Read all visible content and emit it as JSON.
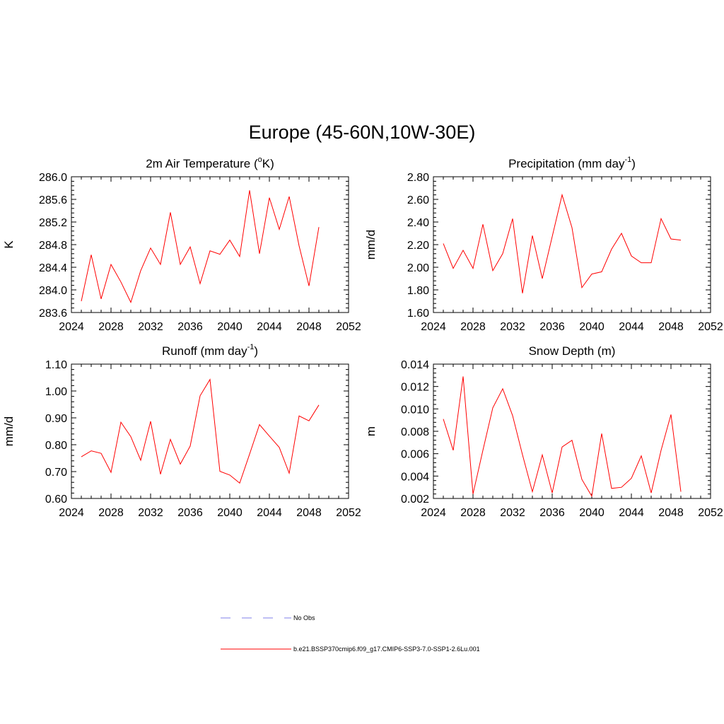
{
  "figure": {
    "title": "Europe (45-60N,10W-30E)"
  },
  "legend": {
    "items": [
      {
        "label": "No Obs",
        "color": "#9999ee",
        "style": "dashed"
      },
      {
        "label": "b.e21.BSSP370cmip6.f09_g17.CMIP6-SSP3-7.0-SSP1-2.6Lu.001",
        "color": "#ff0000",
        "style": "solid"
      }
    ]
  },
  "chart_data": [
    {
      "type": "line",
      "title": "2m Air Temperature (°K)",
      "title_parts": {
        "pre": "2m Air Temperature (",
        "sup": "o",
        "post": "K)"
      },
      "xlabel": "",
      "ylabel": "K",
      "xlim": [
        2024,
        2052
      ],
      "xticks": [
        "2024",
        "2028",
        "2032",
        "2036",
        "2040",
        "2044",
        "2048",
        "2052"
      ],
      "ylim": [
        283.6,
        286.0
      ],
      "yticks": [
        "283.6",
        "284.0",
        "284.4",
        "284.8",
        "285.2",
        "285.6",
        "286.0"
      ],
      "color": "#ff0000",
      "series": [
        {
          "name": "b.e21.BSSP370cmip6.f09_g17.CMIP6-SSP3-7.0-SSP1-2.6Lu.001",
          "x": [
            2025,
            2026,
            2027,
            2028,
            2029,
            2030,
            2031,
            2032,
            2033,
            2034,
            2035,
            2036,
            2037,
            2038,
            2039,
            2040,
            2041,
            2042,
            2043,
            2044,
            2045,
            2046,
            2047,
            2048,
            2049
          ],
          "y": [
            283.8,
            284.62,
            283.84,
            284.45,
            284.14,
            283.78,
            284.34,
            284.74,
            284.45,
            285.37,
            284.45,
            284.76,
            284.11,
            284.69,
            284.63,
            284.88,
            284.59,
            285.76,
            284.64,
            285.63,
            285.07,
            285.65,
            284.78,
            284.07,
            285.11
          ]
        }
      ]
    },
    {
      "type": "line",
      "title": "Precipitation (mm day-1)",
      "title_parts": {
        "pre": "Precipitation (mm day",
        "sup": "-1",
        "post": ")"
      },
      "xlabel": "",
      "ylabel": "mm/d",
      "xlim": [
        2024,
        2052
      ],
      "xticks": [
        "2024",
        "2028",
        "2032",
        "2036",
        "2040",
        "2044",
        "2048",
        "2052"
      ],
      "ylim": [
        1.6,
        2.8
      ],
      "yticks": [
        "1.60",
        "1.80",
        "2.00",
        "2.20",
        "2.40",
        "2.60",
        "2.80"
      ],
      "color": "#ff0000",
      "series": [
        {
          "name": "b.e21.BSSP370cmip6.f09_g17.CMIP6-SSP3-7.0-SSP1-2.6Lu.001",
          "x": [
            2025,
            2026,
            2027,
            2028,
            2029,
            2030,
            2031,
            2032,
            2033,
            2034,
            2035,
            2036,
            2037,
            2038,
            2039,
            2040,
            2041,
            2042,
            2043,
            2044,
            2045,
            2046,
            2047,
            2048,
            2049
          ],
          "y": [
            2.21,
            1.99,
            2.15,
            1.99,
            2.38,
            1.97,
            2.12,
            2.43,
            1.77,
            2.28,
            1.9,
            2.27,
            2.64,
            2.35,
            1.82,
            1.94,
            1.96,
            2.16,
            2.3,
            2.1,
            2.04,
            2.04,
            2.43,
            2.25,
            2.24
          ]
        }
      ]
    },
    {
      "type": "line",
      "title": "Runoff (mm day-1)",
      "title_parts": {
        "pre": "Runoff (mm day",
        "sup": "-1",
        "post": ")"
      },
      "xlabel": "",
      "ylabel": "mm/d",
      "xlim": [
        2024,
        2052
      ],
      "xticks": [
        "2024",
        "2028",
        "2032",
        "2036",
        "2040",
        "2044",
        "2048",
        "2052"
      ],
      "ylim": [
        0.6,
        1.1
      ],
      "yticks": [
        "0.60",
        "0.70",
        "0.80",
        "0.90",
        "1.00",
        "1.10"
      ],
      "color": "#ff0000",
      "series": [
        {
          "name": "b.e21.BSSP370cmip6.f09_g17.CMIP6-SSP3-7.0-SSP1-2.6Lu.001",
          "x": [
            2025,
            2026,
            2027,
            2028,
            2029,
            2030,
            2031,
            2032,
            2033,
            2034,
            2035,
            2036,
            2037,
            2038,
            2039,
            2040,
            2041,
            2042,
            2043,
            2044,
            2045,
            2046,
            2047,
            2048,
            2049
          ],
          "y": [
            0.755,
            0.777,
            0.768,
            0.697,
            0.884,
            0.83,
            0.742,
            0.887,
            0.69,
            0.82,
            0.728,
            0.795,
            0.982,
            1.043,
            0.701,
            0.687,
            0.657,
            0.765,
            0.875,
            0.832,
            0.79,
            0.694,
            0.907,
            0.889,
            0.948
          ]
        }
      ]
    },
    {
      "type": "line",
      "title": "Snow Depth (m)",
      "title_parts": {
        "pre": "Snow Depth (m)",
        "sup": "",
        "post": ""
      },
      "xlabel": "",
      "ylabel": "m",
      "xlim": [
        2024,
        2052
      ],
      "xticks": [
        "2024",
        "2028",
        "2032",
        "2036",
        "2040",
        "2044",
        "2048",
        "2052"
      ],
      "ylim": [
        0.002,
        0.014
      ],
      "yticks": [
        "0.002",
        "0.004",
        "0.006",
        "0.008",
        "0.010",
        "0.012",
        "0.014"
      ],
      "color": "#ff0000",
      "series": [
        {
          "name": "b.e21.BSSP370cmip6.f09_g17.CMIP6-SSP3-7.0-SSP1-2.6Lu.001",
          "x": [
            2025,
            2026,
            2027,
            2028,
            2029,
            2030,
            2031,
            2032,
            2033,
            2034,
            2035,
            2036,
            2037,
            2038,
            2039,
            2040,
            2041,
            2042,
            2043,
            2044,
            2045,
            2046,
            2047,
            2048,
            2049
          ],
          "y": [
            0.0091,
            0.0063,
            0.0129,
            0.0024,
            0.0063,
            0.0101,
            0.0118,
            0.0094,
            0.0059,
            0.0026,
            0.0059,
            0.0025,
            0.0066,
            0.0072,
            0.0037,
            0.0022,
            0.0078,
            0.0029,
            0.003,
            0.0038,
            0.0058,
            0.0025,
            0.0063,
            0.0095,
            0.0026
          ]
        }
      ]
    }
  ]
}
